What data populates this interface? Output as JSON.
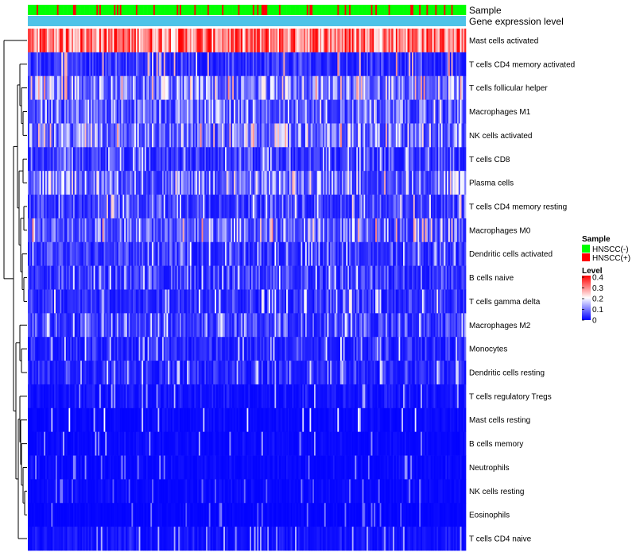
{
  "chart_data": {
    "type": "heatmap",
    "annotation_labels": [
      "Sample",
      "Gene expression level"
    ],
    "row_labels": [
      "Mast cells activated",
      "T cells CD4 memory activated",
      "T cells follicular helper",
      "Macrophages M1",
      "NK cells activated",
      "T cells CD8",
      "Plasma cells",
      "T cells CD4 memory resting",
      "Macrophages M0",
      "Dendritic cells activated",
      "B cells naive",
      "T cells gamma delta",
      "Macrophages M2",
      "Monocytes",
      "Dendritic cells resting",
      "T cells regulatory  Tregs",
      "Mast cells resting",
      "B cells memory",
      "Neutrophils",
      "NK cells resting",
      "Eosinophils",
      "T cells CD4 naive"
    ],
    "row_mean_levels": [
      0.3,
      0.05,
      0.14,
      0.1,
      0.13,
      0.06,
      0.12,
      0.07,
      0.1,
      0.06,
      0.06,
      0.05,
      0.07,
      0.04,
      0.04,
      0.02,
      0.01,
      0.01,
      0.01,
      0.01,
      0.005,
      0.02
    ],
    "row_max_levels": [
      0.4,
      0.3,
      0.22,
      0.2,
      0.2,
      0.2,
      0.22,
      0.25,
      0.3,
      0.2,
      0.2,
      0.22,
      0.2,
      0.2,
      0.18,
      0.15,
      0.2,
      0.15,
      0.12,
      0.1,
      0.1,
      0.15
    ],
    "n_samples": 300,
    "legend": {
      "sample_title": "Sample",
      "groups": [
        {
          "name": "HNSCC(-)",
          "color": "#00ff00"
        },
        {
          "name": "HNSCC(+)",
          "color": "#ff0000"
        }
      ],
      "level_title": "Level",
      "level_ticks": [
        "0.4",
        "0.3",
        "0.2",
        "0.1",
        "0"
      ],
      "level_range": [
        0,
        0.4
      ]
    },
    "colors": {
      "low": "#0000ff",
      "mid": "#ffffff",
      "high": "#ff0000",
      "gene_expression_bar": "#4fc3e8"
    }
  }
}
